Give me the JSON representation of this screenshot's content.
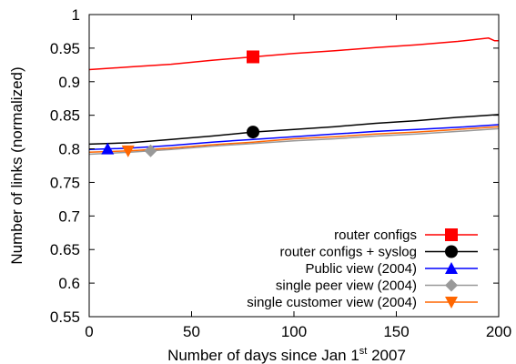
{
  "chart_data": {
    "type": "line",
    "xlabel": "Number of days since Jan 1",
    "xlabel_sup": "st",
    "xlabel_tail": " 2007",
    "ylabel": "Number of links (normalized)",
    "xlim": [
      0,
      200
    ],
    "ylim": [
      0.55,
      1.0
    ],
    "x_ticks": [
      0,
      50,
      100,
      150,
      200
    ],
    "x_tick_labels": [
      "0",
      "50",
      "100",
      "150",
      "200"
    ],
    "y_ticks": [
      0.55,
      0.6,
      0.65,
      0.7,
      0.75,
      0.8,
      0.85,
      0.9,
      0.95,
      1.0
    ],
    "y_tick_labels": [
      "0.55",
      "0.6",
      "0.65",
      "0.7",
      "0.75",
      "0.8",
      "0.85",
      "0.9",
      "0.95",
      "1"
    ],
    "grid": false,
    "legend_position": "bottom-right",
    "series": [
      {
        "name": "router configs",
        "color": "#ff0000",
        "marker": "square",
        "marker_x": 80,
        "x": [
          0,
          20,
          40,
          60,
          80,
          100,
          120,
          140,
          160,
          180,
          195,
          198,
          200
        ],
        "y": [
          0.918,
          0.922,
          0.926,
          0.932,
          0.937,
          0.942,
          0.946,
          0.951,
          0.955,
          0.96,
          0.965,
          0.961,
          0.961
        ]
      },
      {
        "name": "router configs + syslog",
        "color": "#000000",
        "marker": "circle",
        "marker_x": 80,
        "x": [
          0,
          20,
          40,
          60,
          80,
          100,
          120,
          140,
          160,
          180,
          200
        ],
        "y": [
          0.807,
          0.809,
          0.814,
          0.819,
          0.825,
          0.829,
          0.833,
          0.838,
          0.842,
          0.847,
          0.851
        ]
      },
      {
        "name": "Public view (2004)",
        "color": "#0000ff",
        "marker": "triangle-up",
        "marker_x": 9,
        "x": [
          0,
          20,
          40,
          60,
          80,
          100,
          120,
          140,
          160,
          180,
          200
        ],
        "y": [
          0.799,
          0.801,
          0.805,
          0.81,
          0.814,
          0.818,
          0.822,
          0.826,
          0.829,
          0.832,
          0.836
        ]
      },
      {
        "name": "single peer view (2004)",
        "color": "#999999",
        "marker": "diamond",
        "marker_x": 30,
        "x": [
          0,
          20,
          40,
          60,
          80,
          100,
          120,
          140,
          160,
          180,
          200
        ],
        "y": [
          0.792,
          0.795,
          0.799,
          0.804,
          0.808,
          0.812,
          0.815,
          0.819,
          0.822,
          0.826,
          0.83
        ]
      },
      {
        "name": "single customer view (2004)",
        "color": "#ff6600",
        "marker": "triangle-down",
        "marker_x": 19,
        "x": [
          0,
          20,
          40,
          60,
          80,
          100,
          120,
          140,
          160,
          180,
          200
        ],
        "y": [
          0.795,
          0.797,
          0.801,
          0.806,
          0.81,
          0.815,
          0.818,
          0.822,
          0.825,
          0.829,
          0.833
        ]
      }
    ]
  }
}
